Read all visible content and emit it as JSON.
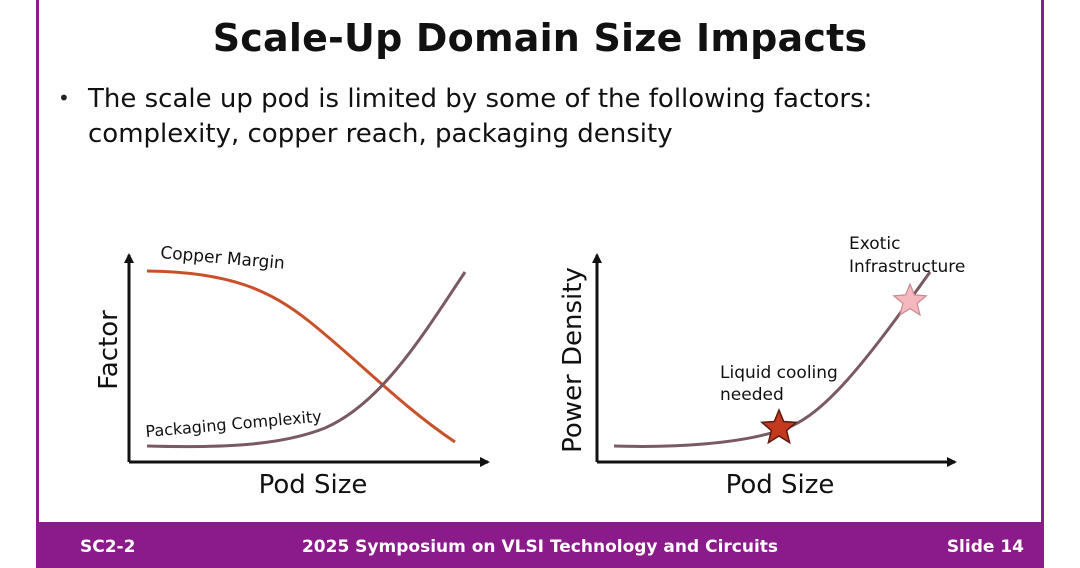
{
  "slide": {
    "title": "Scale-Up Domain Size Impacts",
    "bullet": "The scale up pod is limited by some of the following factors: complexity, copper reach, packaging density"
  },
  "chart_left": {
    "xlabel": "Pod Size",
    "ylabel": "Factor",
    "curve_labels": {
      "copper": "Copper Margin",
      "packaging": "Packaging Complexity"
    }
  },
  "chart_right": {
    "xlabel": "Pod Size",
    "ylabel": "Power Density",
    "annotations": {
      "liquid_line1": "Liquid cooling",
      "liquid_line2": "needed",
      "exotic_line1": "Exotic",
      "exotic_line2": "Infrastructure"
    }
  },
  "footer": {
    "left": "SC2-2",
    "center": "2025 Symposium on VLSI Technology and Circuits",
    "right": "Slide 14"
  },
  "colors": {
    "accent": "#8b1a8b",
    "copper_curve": "#c8512a",
    "packaging_curve": "#7a5a62",
    "star_dark": "#c43a1e",
    "star_light": "#f4b8be"
  }
}
